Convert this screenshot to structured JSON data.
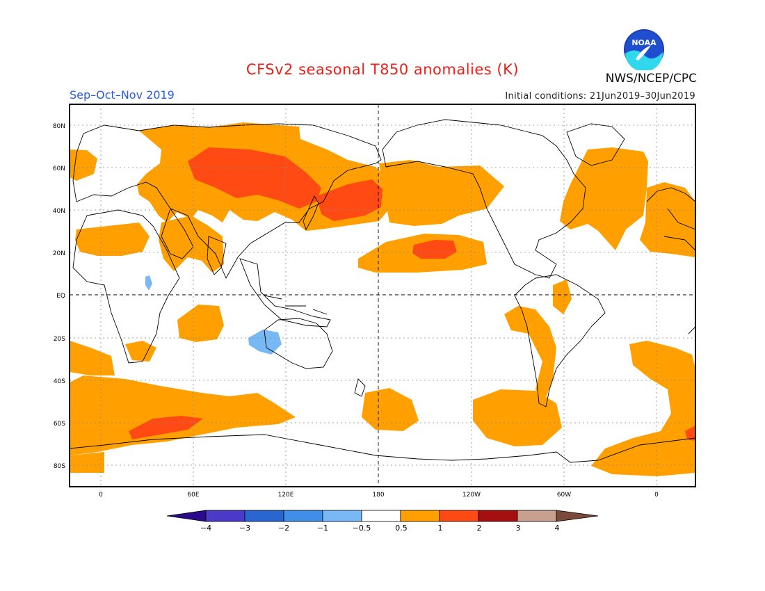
{
  "header": {
    "title": "CFSv2 seasonal T850 anomalies (K)",
    "season": "Sep–Oct–Nov 2019",
    "agency": "NWS/NCEP/CPC",
    "initial_conditions": "Initial conditions: 21Jun2019–30Jun2019",
    "logo_text": "NOAA"
  },
  "map": {
    "lat_labels": [
      "80N",
      "60N",
      "40N",
      "20N",
      "EQ",
      "20S",
      "40S",
      "60S",
      "80S"
    ],
    "lon_labels": [
      "0",
      "60E",
      "120E",
      "180",
      "120W",
      "60W",
      "0"
    ],
    "colors": {
      "orange": "#ffa000",
      "red": "#ff4a14",
      "lightblue": "#78b8f5",
      "coast": "#000000",
      "grid": "#888888"
    }
  },
  "colorbar": {
    "labels": [
      "−4",
      "−3",
      "−2",
      "−1",
      "−0.5",
      "0.5",
      "1",
      "2",
      "3",
      "4"
    ],
    "low_extend_color": "#2a0a8a",
    "high_extend_color": "#7a4a3a",
    "bins": [
      "#4a3ac8",
      "#2a66d0",
      "#3f8ee8",
      "#78b8f5",
      "#ffffff",
      "#ffa000",
      "#ff4a14",
      "#a50f0f",
      "#c8a090"
    ]
  }
}
